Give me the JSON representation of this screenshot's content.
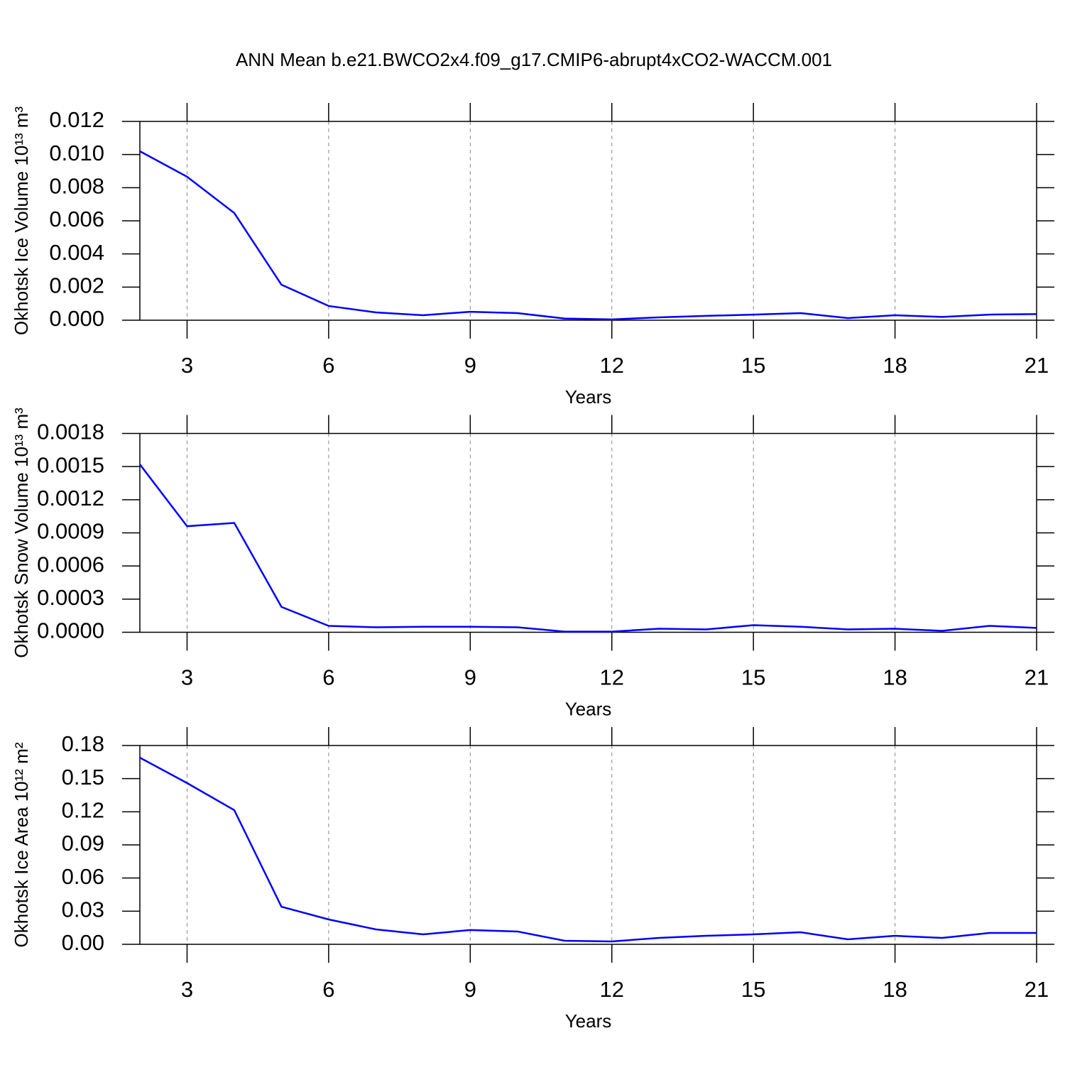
{
  "title": "ANN Mean b.e21.BWCO2x4.f09_g17.CMIP6-abrupt4xCO2-WACCM.001",
  "chart_data": [
    {
      "type": "line",
      "ylabel": "Okhotsk Ice Volume 10¹³ m³",
      "xlabel": "Years",
      "color": "#0000ff",
      "xgrid": true,
      "x": [
        2,
        3,
        4,
        5,
        6,
        7,
        8,
        9,
        10,
        11,
        12,
        13,
        14,
        15,
        16,
        17,
        18,
        19,
        20,
        21
      ],
      "values": [
        0.0102,
        0.00866,
        0.00647,
        0.00214,
        0.00086,
        0.00047,
        0.0003,
        0.00051,
        0.00043,
        0.0001,
        5e-05,
        0.00017,
        0.00026,
        0.00034,
        0.00043,
        0.00013,
        0.0003,
        0.0002,
        0.00034,
        0.00037
      ],
      "xlim": [
        2,
        21
      ],
      "xticks": [
        3,
        6,
        9,
        12,
        15,
        18,
        21
      ],
      "ylim": [
        0,
        0.012
      ],
      "yticks": [
        {
          "value": 0,
          "label": "0.000"
        },
        {
          "value": 0.002,
          "label": "0.002"
        },
        {
          "value": 0.004,
          "label": "0.004"
        },
        {
          "value": 0.006,
          "label": "0.006"
        },
        {
          "value": 0.008,
          "label": "0.008"
        },
        {
          "value": 0.01,
          "label": "0.010"
        },
        {
          "value": 0.012,
          "label": "0.012"
        }
      ]
    },
    {
      "type": "line",
      "ylabel": "Okhotsk Snow Volume 10¹³ m³",
      "xlabel": "Years",
      "color": "#0000ff",
      "xgrid": true,
      "x": [
        2,
        3,
        4,
        5,
        6,
        7,
        8,
        9,
        10,
        11,
        12,
        13,
        14,
        15,
        16,
        17,
        18,
        19,
        20,
        21
      ],
      "values": [
        0.00152,
        0.00096,
        0.00099,
        0.00023,
        5.8e-05,
        4.5e-05,
        5e-05,
        5e-05,
        4.5e-05,
        6e-06,
        6e-06,
        3.2e-05,
        2.6e-05,
        6.4e-05,
        5e-05,
        2.6e-05,
        3.2e-05,
        1.3e-05,
        5.8e-05,
        3.9e-05
      ],
      "xlim": [
        2,
        21
      ],
      "xticks": [
        3,
        6,
        9,
        12,
        15,
        18,
        21
      ],
      "ylim": [
        0,
        0.0018
      ],
      "yticks": [
        {
          "value": 0,
          "label": "0.0000"
        },
        {
          "value": 0.0003,
          "label": "0.0003"
        },
        {
          "value": 0.0006,
          "label": "0.0006"
        },
        {
          "value": 0.0009,
          "label": "0.0009"
        },
        {
          "value": 0.0012,
          "label": "0.0012"
        },
        {
          "value": 0.0015,
          "label": "0.0015"
        },
        {
          "value": 0.0018,
          "label": "0.0018"
        }
      ]
    },
    {
      "type": "line",
      "ylabel": "Okhotsk Ice Area 10¹² m²",
      "xlabel": "Years",
      "color": "#0000ff",
      "xgrid": true,
      "x": [
        2,
        3,
        4,
        5,
        6,
        7,
        8,
        9,
        10,
        11,
        12,
        13,
        14,
        15,
        16,
        17,
        18,
        19,
        20,
        21
      ],
      "values": [
        0.169,
        0.146,
        0.1215,
        0.034,
        0.0225,
        0.0135,
        0.009,
        0.0129,
        0.0116,
        0.0032,
        0.0026,
        0.0058,
        0.0077,
        0.009,
        0.0109,
        0.0045,
        0.0077,
        0.0058,
        0.0103,
        0.0103
      ],
      "xlim": [
        2,
        21
      ],
      "xticks": [
        3,
        6,
        9,
        12,
        15,
        18,
        21
      ],
      "ylim": [
        0,
        0.18
      ],
      "yticks": [
        {
          "value": 0,
          "label": "0.00"
        },
        {
          "value": 0.03,
          "label": "0.03"
        },
        {
          "value": 0.06,
          "label": "0.06"
        },
        {
          "value": 0.09,
          "label": "0.09"
        },
        {
          "value": 0.12,
          "label": "0.12"
        },
        {
          "value": 0.15,
          "label": "0.15"
        },
        {
          "value": 0.18,
          "label": "0.18"
        }
      ]
    }
  ]
}
